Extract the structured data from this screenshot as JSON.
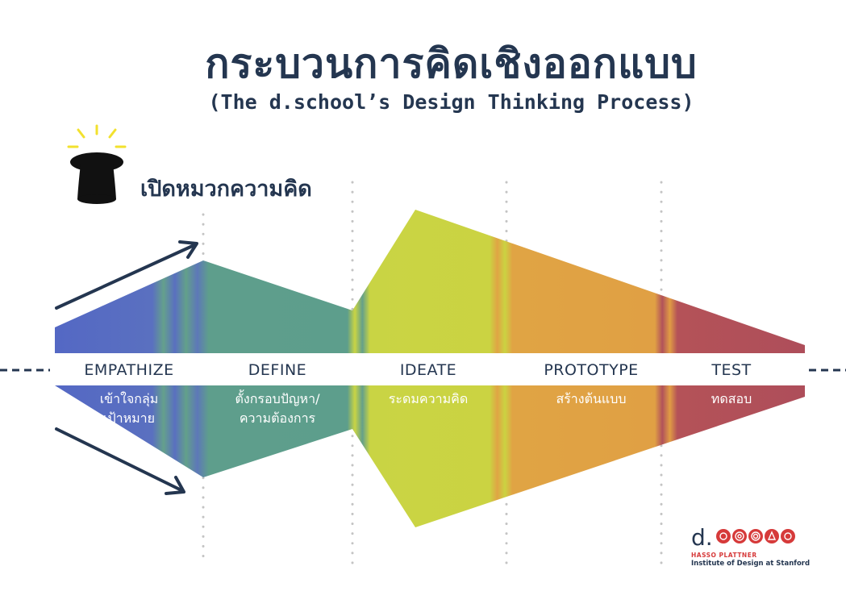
{
  "title": "กระบวนการคิดเชิงออกแบบ",
  "subtitle": "(The d.school’s Design Thinking Process)",
  "hat_label": "เปิดหมวกความคิด",
  "stages": [
    {
      "label": "EMPATHIZE",
      "desc": "เข้าใจกลุ่ม\nเป้าหมาย",
      "color": "#5a6ec8"
    },
    {
      "label": "DEFINE",
      "desc": "ตั้งกรอบปัญหา/\nความต้องการ",
      "color": "#5d9e8c"
    },
    {
      "label": "IDEATE",
      "desc": "ระดมความคิด",
      "color": "#c9d444"
    },
    {
      "label": "PROTOTYPE",
      "desc": "สร้างต้นแบบ",
      "color": "#e0a444"
    },
    {
      "label": "TEST",
      "desc": "ทดสอบ",
      "color": "#b2525a"
    }
  ],
  "logo": {
    "mark": "d.",
    "line1": "HASSO PLATTNER",
    "line2": "Institute of Design at Stanford",
    "accent": "#d63a3a"
  },
  "colors": {
    "ink": "#243650",
    "lightbulb": "#f2e12e"
  },
  "icons": [
    "lightbulb-rays-icon",
    "thinking-hat-icon",
    "arrow-up-right-icon",
    "arrow-down-right-icon"
  ]
}
